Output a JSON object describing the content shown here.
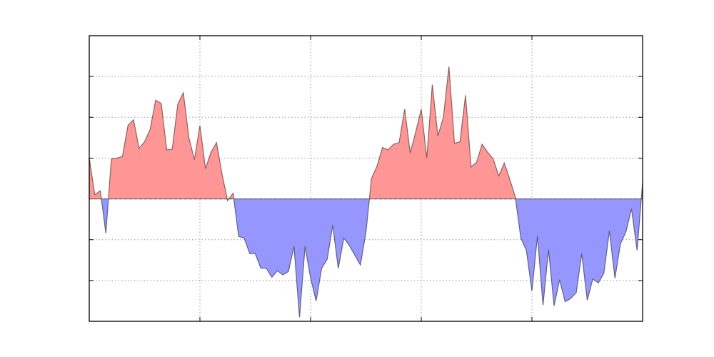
{
  "chart_data": {
    "type": "area",
    "title": "",
    "xlabel": "",
    "ylabel": "",
    "xlim": [
      0,
      100
    ],
    "ylim": [
      -1.5,
      2.0
    ],
    "grid": true,
    "x_gridlines": [
      20,
      40,
      60,
      80
    ],
    "y_gridlines": [
      -1.0,
      -0.5,
      0.5,
      1.0,
      1.5
    ],
    "baseline": 0,
    "colors": {
      "positive": "#ff9696",
      "negative": "#9696ff",
      "frame": "#000000",
      "grid": "#9a9a9a"
    },
    "x": [
      0,
      1,
      2,
      3,
      4,
      5,
      6,
      7,
      8,
      9,
      10,
      11,
      12,
      13,
      14,
      15,
      16,
      17,
      18,
      19,
      20,
      21,
      22,
      23,
      24,
      25,
      26,
      27,
      28,
      29,
      30,
      31,
      32,
      33,
      34,
      35,
      36,
      37,
      38,
      39,
      40,
      41,
      42,
      43,
      44,
      45,
      46,
      47,
      48,
      49,
      50,
      51,
      52,
      53,
      54,
      55,
      56,
      57,
      58,
      59,
      60,
      61,
      62,
      63,
      64,
      65,
      66,
      67,
      68,
      69,
      70,
      71,
      72,
      73,
      74,
      75,
      76,
      77,
      78,
      79,
      80,
      81,
      82,
      83,
      84,
      85,
      86,
      87,
      88,
      89,
      90,
      91,
      92,
      93,
      94,
      95,
      96,
      97,
      98,
      99,
      100
    ],
    "y": [
      0.5,
      0.05,
      0.1,
      -0.42,
      0.49,
      0.5,
      0.52,
      0.9,
      0.97,
      0.62,
      0.7,
      0.85,
      1.21,
      1.17,
      0.6,
      0.61,
      1.16,
      1.3,
      0.75,
      0.48,
      0.9,
      0.37,
      0.57,
      0.69,
      0.3,
      -0.02,
      0.07,
      -0.46,
      -0.48,
      -0.67,
      -0.67,
      -0.85,
      -0.85,
      -0.96,
      -0.88,
      -0.93,
      -0.89,
      -0.58,
      -1.45,
      -0.58,
      -0.97,
      -1.25,
      -0.85,
      -0.74,
      -0.32,
      -0.85,
      -0.48,
      -0.57,
      -0.69,
      -0.81,
      -0.41,
      0.25,
      0.4,
      0.63,
      0.6,
      0.67,
      0.69,
      1.1,
      0.56,
      0.82,
      1.1,
      0.5,
      1.4,
      0.77,
      1.0,
      1.62,
      0.68,
      0.7,
      1.27,
      0.39,
      0.45,
      0.67,
      0.57,
      0.49,
      0.28,
      0.44,
      0.24,
      0.02,
      -0.48,
      -0.63,
      -1.13,
      -0.45,
      -1.3,
      -0.62,
      -1.31,
      -0.99,
      -1.26,
      -1.22,
      -1.15,
      -0.67,
      -1.24,
      -0.98,
      -1.03,
      -0.91,
      -0.39,
      -0.97,
      -0.55,
      -0.4,
      -0.12,
      -0.63,
      0.2
    ]
  }
}
